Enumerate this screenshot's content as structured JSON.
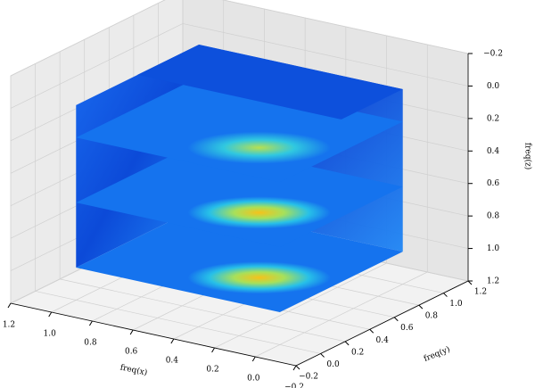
{
  "chart_data": {
    "type": "volume-slices",
    "xlabel": "freq(x)",
    "ylabel": "freq(y)",
    "zlabel": "freq(z)",
    "xlim": [
      -0.2,
      1.2
    ],
    "xticks": [
      {
        "value": 1.2,
        "label": "1.2"
      },
      {
        "value": 1.0,
        "label": "1.0"
      },
      {
        "value": 0.8,
        "label": "0.8"
      },
      {
        "value": 0.6,
        "label": "0.6"
      },
      {
        "value": 0.4,
        "label": "0.4"
      },
      {
        "value": 0.2,
        "label": "0.2"
      },
      {
        "value": 0.0,
        "label": "0.0"
      },
      {
        "value": -0.2,
        "label": "−0.2"
      }
    ],
    "ylim": [
      -0.2,
      1.2
    ],
    "yticks": [
      {
        "value": -0.2,
        "label": "−0.2"
      },
      {
        "value": 0.0,
        "label": "0.0"
      },
      {
        "value": 0.2,
        "label": "0.2"
      },
      {
        "value": 0.4,
        "label": "0.4"
      },
      {
        "value": 0.6,
        "label": "0.6"
      },
      {
        "value": 0.8,
        "label": "0.8"
      },
      {
        "value": 1.0,
        "label": "1.0"
      },
      {
        "value": 1.2,
        "label": "1.2"
      }
    ],
    "zlim": [
      -0.2,
      1.2
    ],
    "zticks": [
      {
        "value": -0.2,
        "label": "−0.2"
      },
      {
        "value": 0.0,
        "label": "0.0"
      },
      {
        "value": 0.2,
        "label": "0.2"
      },
      {
        "value": 0.4,
        "label": "0.4"
      },
      {
        "value": 0.6,
        "label": "0.6"
      },
      {
        "value": 0.8,
        "label": "0.8"
      },
      {
        "value": 1.0,
        "label": "1.0"
      },
      {
        "value": 1.2,
        "label": "1.2"
      }
    ],
    "grid": true
  }
}
